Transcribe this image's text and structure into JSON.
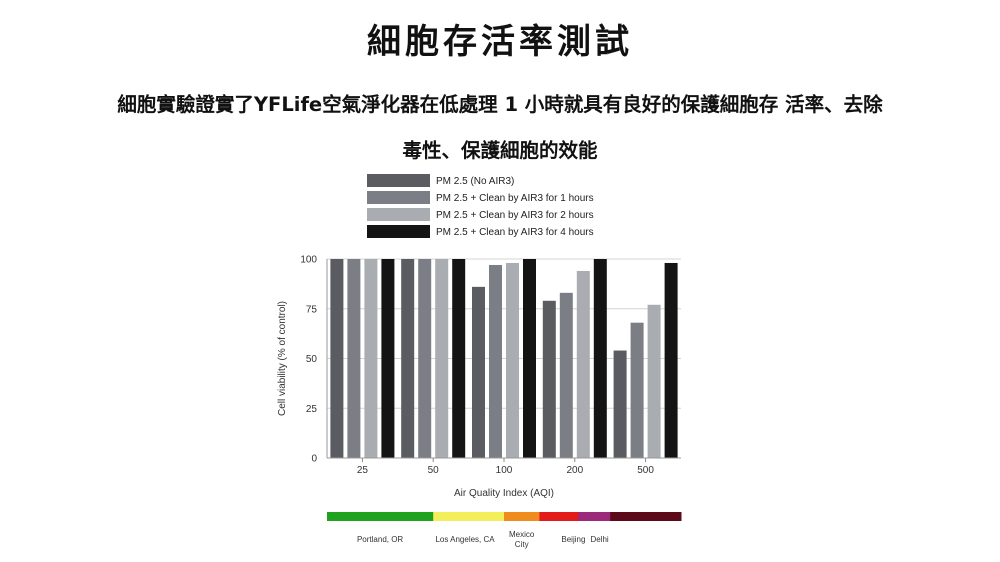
{
  "page": {
    "title": "細胞存活率測試",
    "subtitle_line1": "細胞實驗證實了YFLife空氣淨化器在低處理 1 小時就具有良好的保護細胞存 活率、去除",
    "subtitle_line2": "毒性、保護細胞的效能"
  },
  "chart_data": {
    "type": "bar",
    "categories": [
      "25",
      "50",
      "100",
      "200",
      "500"
    ],
    "series": [
      {
        "name": "PM 2.5 (No AIR3)",
        "color": "#5a5c61",
        "values": [
          100,
          100,
          86,
          79,
          54
        ]
      },
      {
        "name": "PM 2.5 + Clean by AIR3 for 1 hours",
        "color": "#7b7e84",
        "values": [
          100,
          100,
          97,
          83,
          68
        ]
      },
      {
        "name": "PM 2.5 + Clean by AIR3 for 2 hours",
        "color": "#a9acb1",
        "values": [
          100,
          100,
          98,
          94,
          77
        ]
      },
      {
        "name": "PM 2.5 + Clean by AIR3 for 4 hours",
        "color": "#141414",
        "values": [
          100,
          100,
          100,
          100,
          98
        ]
      }
    ],
    "xlabel": "Air Quality Index (AQI)",
    "ylabel": "Cell viability (% of control)",
    "ylim": [
      0,
      100
    ],
    "yticks": [
      "0",
      "25",
      "50",
      "75",
      "100"
    ],
    "grid": true,
    "legend": "top",
    "aqi_scale": [
      {
        "color": "#1fa31f",
        "span": 1.5
      },
      {
        "color": "#f3ef5a",
        "span": 1.0
      },
      {
        "color": "#f08c1e",
        "span": 0.5
      },
      {
        "color": "#e31b1b",
        "span": 0.55
      },
      {
        "color": "#9b2a7a",
        "span": 0.45
      },
      {
        "color": "#5c0a19",
        "span": 1.0
      }
    ],
    "cities": [
      {
        "label": "Portland, OR",
        "pos": 0.75
      },
      {
        "label": "Los Angeles, CA",
        "pos": 1.95
      },
      {
        "label": "Mexico",
        "label2": "City",
        "pos": 2.75
      },
      {
        "label": "Beijing",
        "pos": 3.48
      },
      {
        "label": "Delhi",
        "pos": 3.85
      }
    ]
  }
}
